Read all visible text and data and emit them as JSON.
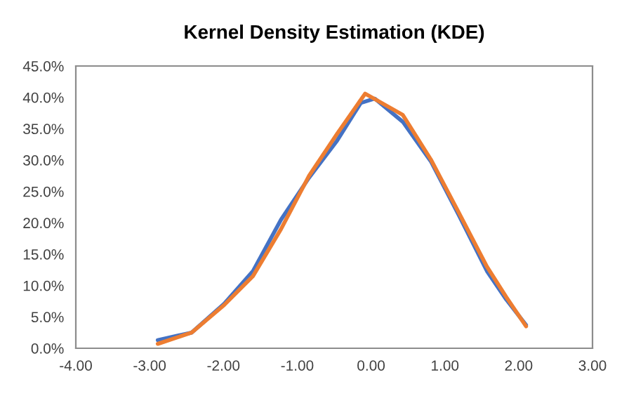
{
  "chart_data": {
    "type": "line",
    "title": "Kernel Density Estimation (KDE)",
    "xlim": [
      -4,
      3
    ],
    "xticks": [
      {
        "value": -4,
        "label": "-4.00"
      },
      {
        "value": -3,
        "label": "-3.00"
      },
      {
        "value": -2,
        "label": "-2.00"
      },
      {
        "value": -1,
        "label": "-1.00"
      },
      {
        "value": 0,
        "label": "0.00"
      },
      {
        "value": 1,
        "label": "1.00"
      },
      {
        "value": 2,
        "label": "2.00"
      },
      {
        "value": 3,
        "label": "3.00"
      }
    ],
    "ylim": [
      0,
      45
    ],
    "yticks": [
      {
        "value": 0,
        "label": "0.0%"
      },
      {
        "value": 5,
        "label": "5.0%"
      },
      {
        "value": 10,
        "label": "10.0%"
      },
      {
        "value": 15,
        "label": "15.0%"
      },
      {
        "value": 20,
        "label": "20.0%"
      },
      {
        "value": 25,
        "label": "25.0%"
      },
      {
        "value": 30,
        "label": "30.0%"
      },
      {
        "value": 35,
        "label": "35.0%"
      },
      {
        "value": 40,
        "label": "40.0%"
      },
      {
        "value": 45,
        "label": "45.0%"
      }
    ],
    "grid": false,
    "series": [
      {
        "color": "#4472c4",
        "x": [
          -2.89,
          -2.43,
          -1.99,
          -1.6,
          -1.22,
          -0.84,
          -0.46,
          -0.14,
          0.05,
          0.43,
          0.81,
          1.19,
          1.57,
          1.83,
          2.1
        ],
        "values": [
          1.3,
          2.5,
          7.1,
          12.3,
          20.5,
          27.2,
          33.1,
          39.1,
          39.8,
          36.1,
          29.8,
          21.2,
          12.3,
          7.8,
          3.7
        ]
      },
      {
        "color": "#ed7d31",
        "x": [
          -2.89,
          -2.43,
          -1.99,
          -1.6,
          -1.22,
          -0.84,
          -0.46,
          -0.08,
          0.43,
          0.81,
          1.19,
          1.57,
          1.83,
          2.1
        ],
        "values": [
          0.7,
          2.5,
          6.9,
          11.5,
          19.0,
          27.5,
          34.2,
          40.6,
          37.2,
          30.1,
          21.6,
          13.0,
          8.2,
          3.5
        ]
      }
    ]
  }
}
